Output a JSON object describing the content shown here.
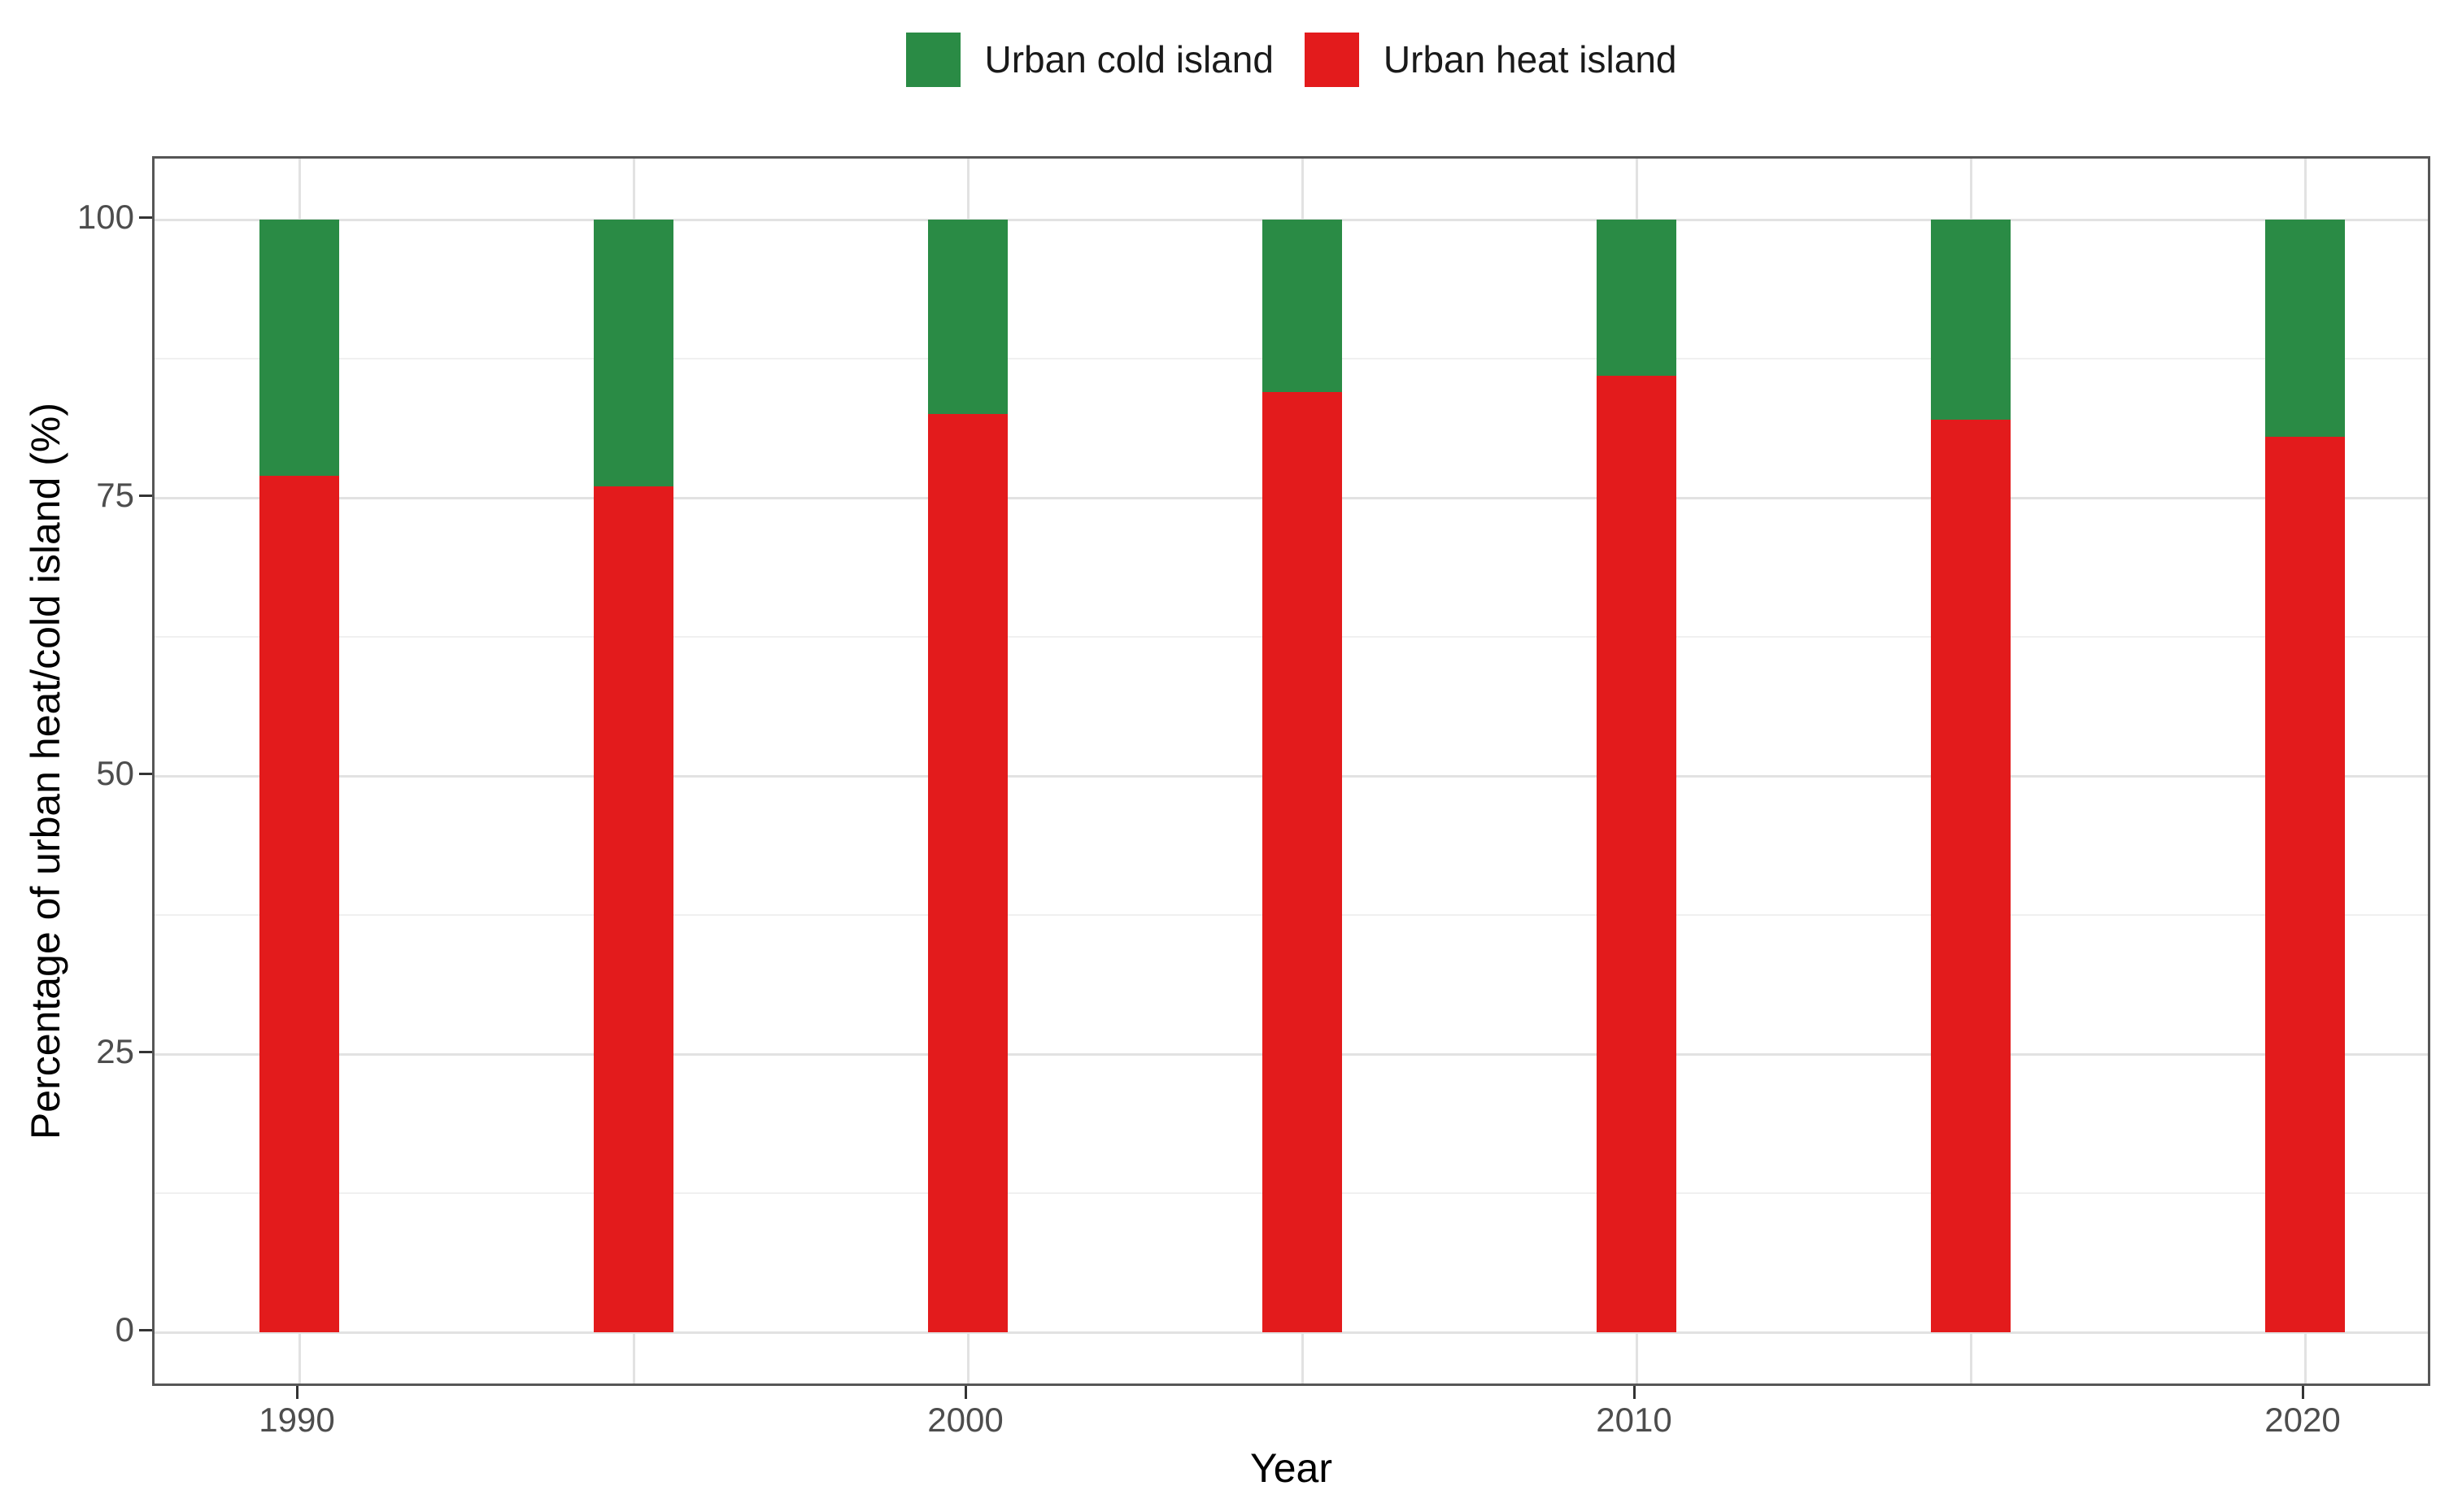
{
  "chart_data": {
    "type": "bar",
    "stacked": true,
    "title": "",
    "xlabel": "Year",
    "ylabel": "Percentage of urban heat/cold island (%)",
    "categories": [
      1990,
      1995,
      2000,
      2005,
      2010,
      2015,
      2020
    ],
    "series": [
      {
        "name": "Urban heat island",
        "color": "#e31b1c",
        "values": [
          77,
          76,
          82.5,
          84.5,
          86,
          82,
          80.5
        ]
      },
      {
        "name": "Urban cold island",
        "color": "#2a8b45",
        "values": [
          23,
          24,
          17.5,
          15.5,
          14,
          18,
          19.5
        ]
      }
    ],
    "ylim": [
      0,
      100
    ],
    "y_major_ticks": [
      0,
      25,
      50,
      75,
      100
    ],
    "y_tick_labels": [
      "0",
      "25",
      "50",
      "75",
      "100"
    ],
    "y_minor_gridlines": [
      12.5,
      37.5,
      62.5,
      87.5
    ],
    "x_labeled_ticks": [
      1990,
      2000,
      2010,
      2020
    ],
    "x_tick_labels": [
      "1990",
      "2000",
      "2010",
      "2020"
    ],
    "grid": "horizontal major+minor, vertical line at every bar position",
    "legend_position": "top-center"
  },
  "legend": {
    "items": [
      {
        "label": "Urban cold island",
        "color": "#2a8b45"
      },
      {
        "label": "Urban heat island",
        "color": "#e31b1c"
      }
    ]
  },
  "style": {
    "background": "#ffffff",
    "panel_border": "#565656",
    "grid_major_color": "#e2e2e2",
    "grid_minor_color": "#f0f0f0",
    "tick_mark_color": "#333333",
    "tick_label_color": "#4d4d4d",
    "title_color": "#000000",
    "bar_green": "#2a8b45",
    "bar_red": "#e31b1c"
  }
}
